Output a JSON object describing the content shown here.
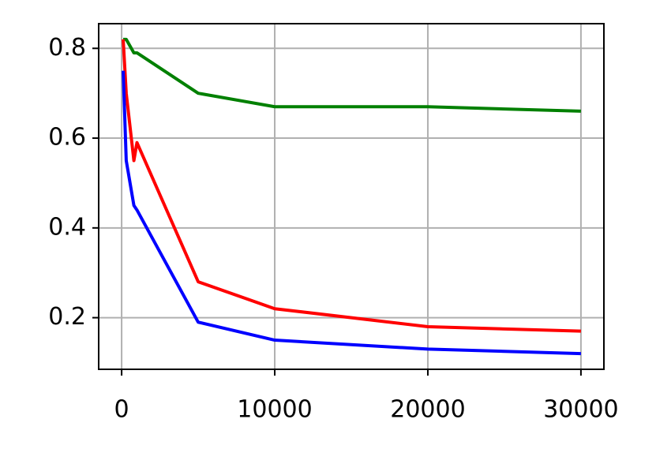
{
  "chart_data": {
    "type": "line",
    "x": [
      100,
      300,
      800,
      1000,
      5000,
      10000,
      20000,
      30000
    ],
    "series": [
      {
        "color": "#008000",
        "values": [
          0.82,
          0.82,
          0.79,
          0.79,
          0.7,
          0.67,
          0.67,
          0.66
        ]
      },
      {
        "color": "#ff0000",
        "values": [
          0.82,
          0.7,
          0.55,
          0.59,
          0.28,
          0.22,
          0.18,
          0.17
        ]
      },
      {
        "color": "#0000ff",
        "values": [
          0.75,
          0.55,
          0.45,
          0.44,
          0.19,
          0.15,
          0.13,
          0.12
        ]
      }
    ],
    "xlim": [
      -1500,
      31500
    ],
    "xticks": [
      0,
      10000,
      20000,
      30000
    ],
    "ylim": [
      0.085,
      0.855
    ],
    "yticks": [
      0.2,
      0.4,
      0.6,
      0.8
    ],
    "grid": true
  }
}
